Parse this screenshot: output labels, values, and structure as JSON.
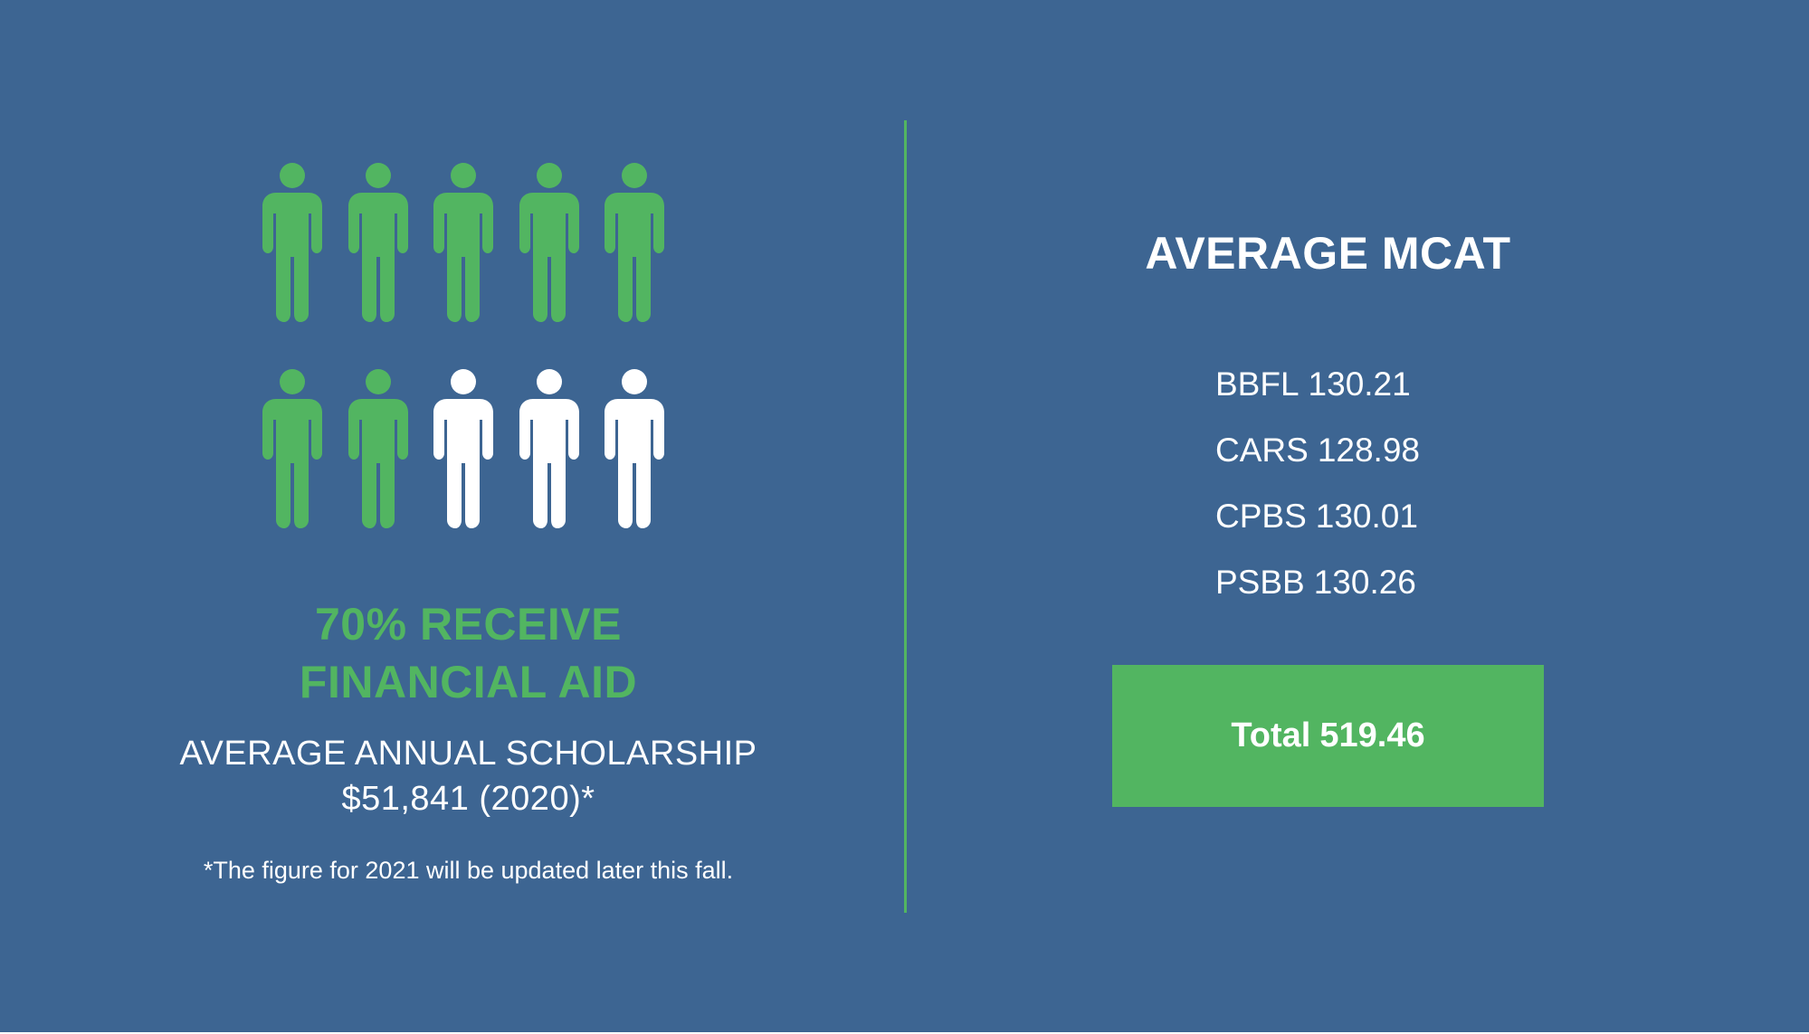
{
  "colors": {
    "background": "#3d6592",
    "accent_green": "#52b561",
    "text_white": "#ffffff"
  },
  "left": {
    "people_pictogram": {
      "icon": "person-icon",
      "total": 10,
      "highlighted": 7,
      "highlight_color": "#52b561",
      "base_color": "#ffffff"
    },
    "headline_line1": "70% RECEIVE",
    "headline_line2": "FINANCIAL AID",
    "scholarship_line1": "AVERAGE ANNUAL SCHOLARSHIP",
    "scholarship_line2": "$51,841 (2020)*",
    "footnote": "*The figure for 2021 will be updated later this fall."
  },
  "right": {
    "title": "AVERAGE MCAT",
    "scores": [
      {
        "label": "BBFL",
        "value": "130.21"
      },
      {
        "label": "CARS",
        "value": "128.98"
      },
      {
        "label": "CPBS",
        "value": "130.01"
      },
      {
        "label": "PSBB",
        "value": "130.26"
      }
    ],
    "total_label": "Total",
    "total_value": "519.46"
  }
}
